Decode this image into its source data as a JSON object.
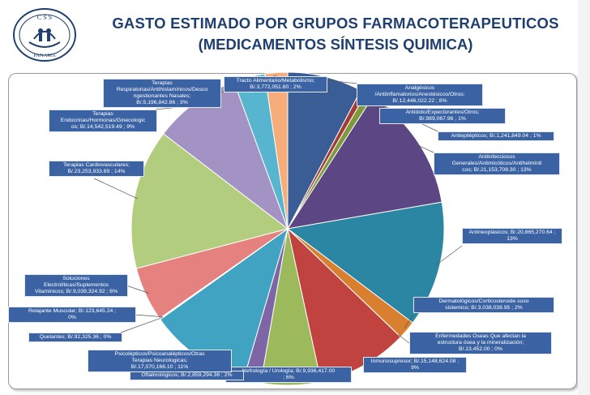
{
  "header": {
    "title_line1": "GASTO ESTIMADO POR  GRUPOS FARMACOTERAPEUTICOS",
    "title_line2": "(MEDICAMENTOS SÍNTESIS QUIMICA)",
    "logo_text_top": "C S S",
    "logo_text_bottom": "PANAMA"
  },
  "colors": {
    "title": "#1f3f6e",
    "label_bg": "#3b63a4"
  },
  "chart_data": {
    "type": "pie",
    "title": "",
    "slices": [
      {
        "label": "Analgésicos /Antiinflamatorios/Anestésicos/Otros; B/.12,446,022.22 ; 8%",
        "value": 12446022.22,
        "percent": 8,
        "color": "#3a5d96"
      },
      {
        "label": "Antídoto/Expectorantes/Otros; B/.989,067.96 ; 1%",
        "value": 989067.96,
        "percent": 1,
        "color": "#a63b36"
      },
      {
        "label": "Antiepilépticos; B/.1,241,849.04 ; 1%",
        "value": 1241849.04,
        "percent": 1,
        "color": "#7d9a3e"
      },
      {
        "label": "Antiinfecciosos Generales/Antimicóticos/Antihelmínticos; B/.21,153,708.30 ; 13%",
        "value": 21153708.3,
        "percent": 13,
        "color": "#5c4784"
      },
      {
        "label": "Antineoplásicos; B/.20,865,270.64 ; 13%",
        "value": 20865270.64,
        "percent": 13,
        "color": "#2a86a3"
      },
      {
        "label": "Dermatológicos/Corticosteroide suso sistemico; B/.3,038,038.95 ; 2%",
        "value": 3038038.95,
        "percent": 2,
        "color": "#d98030"
      },
      {
        "label": "Enfermedades Oseas Que afectan la estructura ósea y la mineralización; B/.13,452.00 ; 0%",
        "value": 13452.0,
        "percent": 0,
        "color": "#3f68a8"
      },
      {
        "label": "Inmunosupresor; B/.15,148,624.08 ; 9%",
        "value": 15148624.08,
        "percent": 9,
        "color": "#c0433f"
      },
      {
        "label": "Nefrología / Urología; B/.9,936,417.00 ; 6%",
        "value": 9936417.0,
        "percent": 6,
        "color": "#9cba5c"
      },
      {
        "label": "Oftalmológicos; B/.2,859,294.36 ; 2%",
        "value": 2859294.36,
        "percent": 2,
        "color": "#7e66a6"
      },
      {
        "label": "Psicolépticos/Psicoanalépticos/Otras Terapias Neurologicas; B/.17,070,166.10 ; 11%",
        "value": 17070166.1,
        "percent": 11,
        "color": "#41a3c2"
      },
      {
        "label": "Quelantes; B/.92,325.36 ; 0%",
        "value": 92325.36,
        "percent": 0,
        "color": "#f2a04e"
      },
      {
        "label": "Relajante Muscular; B/.123,645.24 ; 0%",
        "value": 123645.24,
        "percent": 0,
        "color": "#9ab7e0"
      },
      {
        "label": "Soluciones Electrolíticas/Suplementos Vitamínicos; B/.9,039,324.92 ; 6%",
        "value": 9039324.92,
        "percent": 6,
        "color": "#e58280"
      },
      {
        "label": "Terapias Cardiovasculares; B/.23,253,933.89 ; 14%",
        "value": 23253933.89,
        "percent": 14,
        "color": "#b3cd7e"
      },
      {
        "label": "Terapias Endocrinas/Hormonas/Ginecologicas; B/.14,542,519.49 ; 9%",
        "value": 14542519.49,
        "percent": 9,
        "color": "#a393c4"
      },
      {
        "label": "Terapias Respiratorias/Antihistamínicos/Descongestionantes Nasales; B/.5,196,842.86 ; 3%",
        "value": 5196842.86,
        "percent": 3,
        "color": "#58b5cf"
      },
      {
        "label": "Tracto Alimentario/Metabolismo; B/.3,772,051.80 ; 2%",
        "value": 3772051.8,
        "percent": 2,
        "color": "#f7ad7a"
      }
    ]
  },
  "labels": [
    {
      "text": "Analgésicos\n/Antiinflamatorios/Anestésicos/Otros;\nB/.12,446,022.22 ; 8%"
    },
    {
      "text": "Antídoto/Expectorantes/Otros;\nB/.989,067.96 ; 1%"
    },
    {
      "text": "Antiepilépticos; B/.1,241,849.04 ; 1%"
    },
    {
      "text": "Antiinfecciosos\nGenerales/Antimicóticos/Antihelmínti\ncos; B/.21,153,708.30 ; 13%"
    },
    {
      "text": "Antineoplásicos; B/.20,865,270.64 ;\n13%"
    },
    {
      "text": "Dermatológicos/Corticosteroide suso\nsistemico; B/.3,038,038.95 ; 2%"
    },
    {
      "text": "Enfermedades Oseas Que afectan la\nestructura ósea y la mineralización;\nB/.13,452.00 ; 0%"
    },
    {
      "text": "Inmunosupresor; B/.15,148,624.08 ;\n9%"
    },
    {
      "text": "Nefrología / Urología; B/.9,936,417.00\n; 6%"
    },
    {
      "text": "Oftalmológicos; B/.2,859,294.36 ; 2%"
    },
    {
      "text": "Psicolépticos/Psicoanalépticos/Otras\nTerapias Neurologicas;\nB/.17,070,166.10 ; 11%"
    },
    {
      "text": "Quelantes; B/.92,325.36 ; 0%"
    },
    {
      "text": "Relajante Muscular; B/.123,645.24 ;\n0%"
    },
    {
      "text": "Soluciones\nElectrolíticas/Suplementos\nVitamínicos; B/.9,039,324.92 ; 6%"
    },
    {
      "text": "Terapias Cardiovasculares;\nB/.23,253,933.89 ; 14%"
    },
    {
      "text": "Terapias\nEndocrinas/Hormonas/Ginecologic\nos; B/.14,542,519.49 ; 9%"
    },
    {
      "text": "Terapias\nRespiratorias/Antihistamínicos/Desco\nngestionantes Nasales;\nB/.5,196,842.86 ; 3%"
    },
    {
      "text": "Tracto Alimentario/Metabolismo;\nB/.3,772,051.80 ; 2%"
    }
  ]
}
